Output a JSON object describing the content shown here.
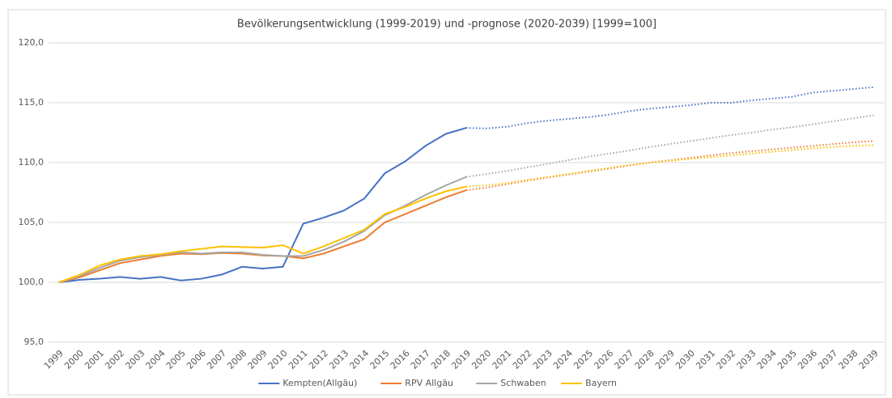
{
  "chart_data": {
    "type": "line",
    "title": "Bevölkerungsentwicklung (1999-2019) und -prognose (2020-2039) [1999=100]",
    "categories": [
      "1999",
      "2000",
      "2001",
      "2002",
      "2003",
      "2004",
      "2005",
      "2006",
      "2007",
      "2008",
      "2009",
      "2010",
      "2011",
      "2012",
      "2013",
      "2014",
      "2015",
      "2016",
      "2017",
      "2018",
      "2019",
      "2020",
      "2021",
      "2022",
      "2023",
      "2024",
      "2025",
      "2026",
      "2027",
      "2028",
      "2029",
      "2030",
      "2031",
      "2032",
      "2033",
      "2034",
      "2035",
      "2036",
      "2037",
      "2038",
      "2039"
    ],
    "forecast_start": "2020",
    "ylim": [
      95,
      120
    ],
    "yticks": [
      {
        "value": 95,
        "label": "95,0"
      },
      {
        "value": 100,
        "label": "100,0"
      },
      {
        "value": 105,
        "label": "105,0"
      },
      {
        "value": 110,
        "label": "110,0"
      },
      {
        "value": 115,
        "label": "115,0"
      },
      {
        "value": 120,
        "label": "120,0"
      }
    ],
    "grid": true,
    "legend": "bottom",
    "series": [
      {
        "name": "Kempten(Allgäu)",
        "color": "#4472c4",
        "values": [
          100,
          100.2,
          100.3,
          100.45,
          100.3,
          100.45,
          100.15,
          100.3,
          100.65,
          101.3,
          101.15,
          101.3,
          104.9,
          105.4,
          106.0,
          107.0,
          109.1,
          110.1,
          111.4,
          112.4,
          112.9,
          112.85,
          113.0,
          113.3,
          113.5,
          113.65,
          113.8,
          114.0,
          114.3,
          114.5,
          114.65,
          114.8,
          115.0,
          115.0,
          115.2,
          115.35,
          115.5,
          115.85,
          116.0,
          116.15,
          116.3
        ]
      },
      {
        "name": "RPV Allgäu",
        "color": "#ed7d31",
        "values": [
          100,
          100.4,
          101.0,
          101.6,
          101.9,
          102.2,
          102.4,
          102.35,
          102.45,
          102.4,
          102.25,
          102.2,
          102.0,
          102.4,
          103.0,
          103.6,
          105.0,
          105.7,
          106.4,
          107.1,
          107.7,
          107.9,
          108.2,
          108.5,
          108.75,
          109.0,
          109.25,
          109.5,
          109.75,
          110.0,
          110.2,
          110.4,
          110.6,
          110.8,
          110.95,
          111.1,
          111.25,
          111.4,
          111.55,
          111.7,
          111.8
        ]
      },
      {
        "name": "Schwaben",
        "color": "#a5a5a5",
        "values": [
          100,
          100.5,
          101.2,
          101.8,
          102.1,
          102.3,
          102.5,
          102.4,
          102.5,
          102.5,
          102.3,
          102.2,
          102.2,
          102.7,
          103.4,
          104.3,
          105.6,
          106.4,
          107.3,
          108.1,
          108.8,
          109.05,
          109.3,
          109.6,
          109.9,
          110.2,
          110.5,
          110.75,
          111.0,
          111.3,
          111.55,
          111.8,
          112.05,
          112.3,
          112.5,
          112.75,
          112.95,
          113.2,
          113.45,
          113.7,
          113.95
        ]
      },
      {
        "name": "Bayern",
        "color": "#ffc000",
        "values": [
          100,
          100.6,
          101.4,
          101.9,
          102.2,
          102.35,
          102.6,
          102.8,
          103.0,
          102.95,
          102.9,
          103.1,
          102.4,
          103.0,
          103.7,
          104.4,
          105.7,
          106.3,
          107.0,
          107.6,
          108.0,
          108.1,
          108.3,
          108.55,
          108.8,
          109.05,
          109.3,
          109.55,
          109.8,
          110.0,
          110.15,
          110.3,
          110.45,
          110.6,
          110.75,
          110.9,
          111.05,
          111.2,
          111.3,
          111.4,
          111.45
        ]
      }
    ]
  }
}
